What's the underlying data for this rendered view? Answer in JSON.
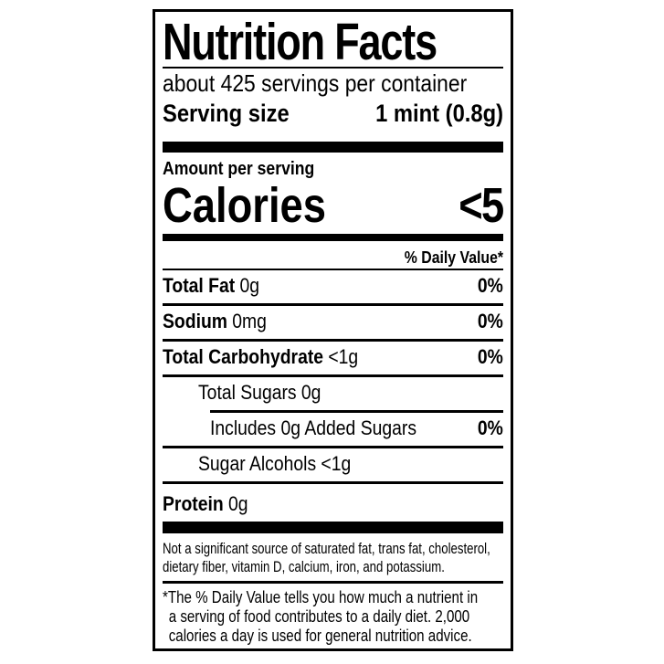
{
  "label": {
    "title": "Nutrition Facts",
    "servings_per_container": "about 425 servings per container",
    "serving_size_label": "Serving size",
    "serving_size_value": "1 mint (0.8g)",
    "amount_per_serving": "Amount per serving",
    "calories_label": "Calories",
    "calories_value": "<5",
    "daily_value_header": "% Daily Value*",
    "nutrients": [
      {
        "name": "Total Fat",
        "amount": "0g",
        "dv": "0%"
      },
      {
        "name": "Sodium",
        "amount": "0mg",
        "dv": "0%"
      },
      {
        "name": "Total Carbohydrate",
        "amount": "<1g",
        "dv": "0%"
      },
      {
        "name": "Total Sugars",
        "amount": "0g",
        "dv": ""
      },
      {
        "name": "Includes 0g Added Sugars",
        "amount": "",
        "dv": "0%"
      },
      {
        "name": "Sugar Alcohols",
        "amount": "<1g",
        "dv": ""
      },
      {
        "name": "Protein",
        "amount": "0g",
        "dv": ""
      }
    ],
    "not_significant_lines": [
      "Not a significant source of saturated fat, trans fat, cholesterol,",
      "dietary fiber, vitamin D, calcium, iron, and potassium."
    ],
    "daily_value_footnote_lines": [
      "*The % Daily Value tells you how much a nutrient in",
      "a serving of food contributes to a daily diet. 2,000",
      "calories a day is used for general nutrition advice."
    ]
  }
}
